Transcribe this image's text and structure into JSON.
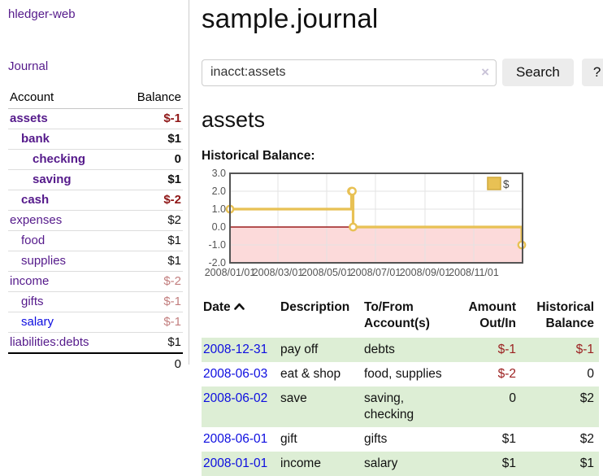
{
  "sidebar": {
    "brand": "hledger-web",
    "journal_link": "Journal",
    "accounts_table": {
      "account_header": "Account",
      "balance_header": "Balance",
      "rows": [
        {
          "name": "assets",
          "level": 1,
          "bold": true,
          "balance": "$-1"
        },
        {
          "name": "bank",
          "level": 2,
          "bold": true,
          "balance": "$1"
        },
        {
          "name": "checking",
          "level": 3,
          "bold": true,
          "balance": "0"
        },
        {
          "name": "saving",
          "level": 3,
          "bold": true,
          "balance": "$1"
        },
        {
          "name": "cash",
          "level": 2,
          "bold": true,
          "balance": "$-2"
        },
        {
          "name": "expenses",
          "level": 1,
          "bold": false,
          "balance": "$2"
        },
        {
          "name": "food",
          "level": 2,
          "bold": false,
          "balance": "$1"
        },
        {
          "name": "supplies",
          "level": 2,
          "bold": false,
          "balance": "$1"
        },
        {
          "name": "income",
          "level": 1,
          "bold": false,
          "balance": "$-2"
        },
        {
          "name": "gifts",
          "level": 2,
          "bold": false,
          "balance": "$-1"
        },
        {
          "name": "salary",
          "level": 2,
          "bold": false,
          "balance": "$-1",
          "unvisited": true
        },
        {
          "name": "liabilities:debts",
          "level": 1,
          "bold": false,
          "balance": "$1"
        }
      ],
      "total": "0"
    }
  },
  "header": {
    "title": "sample.journal"
  },
  "search": {
    "value": "inacct:assets",
    "clear_icon": "×",
    "button_label": "Search",
    "help_label": "?"
  },
  "account_page": {
    "heading": "assets",
    "chart_title": "Historical Balance:"
  },
  "chart_data": {
    "type": "line",
    "style": "step",
    "title": "Historical Balance",
    "series": [
      {
        "name": "$",
        "points": [
          {
            "date": "2008-01-01",
            "value": 1
          },
          {
            "date": "2008-06-01",
            "value": 2
          },
          {
            "date": "2008-06-02",
            "value": 2
          },
          {
            "date": "2008-06-03",
            "value": 0
          },
          {
            "date": "2008-12-31",
            "value": -1
          }
        ]
      }
    ],
    "ylim": [
      -2,
      3
    ],
    "xlim": [
      "2008-01-01",
      "2009-01-01"
    ],
    "y_ticks": [
      "3.0",
      "2.0",
      "1.0",
      "0.0",
      "-1.0",
      "-2.0"
    ],
    "x_ticks": [
      "2008/01/01",
      "2008/03/01",
      "2008/05/01",
      "2008/07/01",
      "2008/09/01",
      "2008/11/01"
    ],
    "grid": true,
    "legend": {
      "label": "$",
      "position": "top-right"
    },
    "colors": {
      "line": "#e8c154",
      "marker_fill": "#ffffff",
      "negative_region": "#fcdada",
      "zero_line": "#9c1c1c",
      "grid": "#e3e3e3",
      "border": "#545454"
    }
  },
  "register_table": {
    "headers": {
      "date": "Date",
      "description": "Description",
      "accounts": "To/From\nAccount(s)",
      "amount": "Amount\nOut/In",
      "historical": "Historical\nBalance"
    },
    "rows": [
      {
        "date": "2008-12-31",
        "description": "pay off",
        "accounts": "debts",
        "amount": "$-1",
        "balance": "$-1"
      },
      {
        "date": "2008-06-03",
        "description": "eat & shop",
        "accounts": "food, supplies",
        "amount": "$-2",
        "balance": "0"
      },
      {
        "date": "2008-06-02",
        "description": "save",
        "accounts": "saving,\nchecking",
        "amount": "0",
        "balance": "$2"
      },
      {
        "date": "2008-06-01",
        "description": "gift",
        "accounts": "gifts",
        "amount": "$1",
        "balance": "$2"
      },
      {
        "date": "2008-01-01",
        "description": "income",
        "accounts": "salary",
        "amount": "$1",
        "balance": "$1"
      }
    ]
  }
}
